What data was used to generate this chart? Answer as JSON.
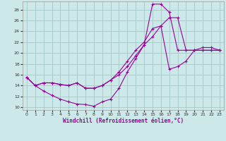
{
  "xlabel": "Windchill (Refroidissement éolien,°C)",
  "bg_color": "#cce8e8",
  "grid_color": "#aacccc",
  "line_color": "#990099",
  "xlim": [
    -0.5,
    23.5
  ],
  "ylim": [
    9.5,
    29.5
  ],
  "xticks": [
    0,
    1,
    2,
    3,
    4,
    5,
    6,
    7,
    8,
    9,
    10,
    11,
    12,
    13,
    14,
    15,
    16,
    17,
    18,
    19,
    20,
    21,
    22,
    23
  ],
  "yticks": [
    10,
    12,
    14,
    16,
    18,
    20,
    22,
    24,
    26,
    28
  ],
  "lines": [
    {
      "x": [
        0,
        1,
        2,
        3,
        4,
        5,
        6,
        7,
        8,
        9,
        10,
        11,
        12,
        13,
        14,
        15,
        16,
        17,
        18,
        19,
        20,
        21,
        22,
        23
      ],
      "y": [
        15.5,
        14.0,
        13.0,
        12.2,
        11.5,
        11.0,
        10.6,
        10.5,
        10.2,
        11.0,
        11.5,
        13.5,
        16.5,
        19.0,
        21.5,
        29.0,
        29.0,
        27.5,
        20.5,
        20.5,
        20.5,
        20.5,
        20.5,
        20.5
      ]
    },
    {
      "x": [
        0,
        1,
        2,
        3,
        4,
        5,
        6,
        7,
        8,
        9,
        10,
        11,
        12,
        13,
        14,
        15,
        16,
        17,
        18,
        19,
        20,
        21,
        22,
        23
      ],
      "y": [
        15.5,
        14.0,
        14.5,
        14.5,
        14.2,
        14.0,
        14.5,
        13.5,
        13.5,
        14.0,
        15.0,
        16.0,
        17.5,
        19.5,
        21.5,
        23.0,
        25.0,
        26.5,
        26.5,
        20.5,
        20.5,
        21.0,
        21.0,
        20.5
      ]
    },
    {
      "x": [
        0,
        1,
        2,
        3,
        4,
        5,
        6,
        7,
        8,
        9,
        10,
        11,
        12,
        13,
        14,
        15,
        16,
        17,
        18,
        19,
        20,
        21,
        22,
        23
      ],
      "y": [
        15.5,
        14.0,
        14.5,
        14.5,
        14.2,
        14.0,
        14.5,
        13.5,
        13.5,
        14.0,
        15.0,
        16.5,
        18.5,
        20.5,
        22.0,
        24.5,
        25.0,
        17.0,
        17.5,
        18.5,
        20.5,
        20.5,
        20.5,
        20.5
      ]
    }
  ]
}
